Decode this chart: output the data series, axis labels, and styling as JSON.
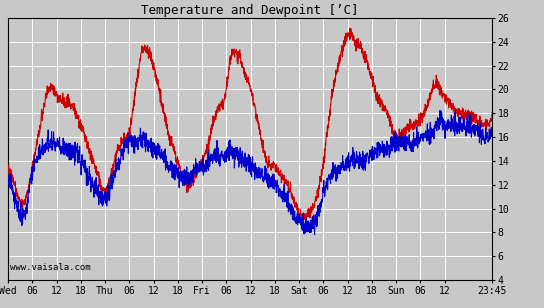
{
  "title": "Temperature and Dewpoint [’C]",
  "ylim": [
    4,
    26
  ],
  "yticks": [
    4,
    6,
    8,
    10,
    12,
    14,
    16,
    18,
    20,
    22,
    24,
    26
  ],
  "xtick_labels": [
    "Wed",
    "06",
    "12",
    "18",
    "Thu",
    "06",
    "12",
    "18",
    "Fri",
    "06",
    "12",
    "18",
    "Sat",
    "06",
    "12",
    "18",
    "Sun",
    "06",
    "12",
    "23:45"
  ],
  "xtick_positions": [
    0,
    6,
    12,
    18,
    24,
    30,
    36,
    42,
    48,
    54,
    60,
    66,
    72,
    78,
    84,
    90,
    96,
    102,
    108,
    119.75
  ],
  "total_hours": 119.75,
  "watermark": "www.vaisala.com",
  "bg_color": "#c8c8c8",
  "plot_bg_color": "#c8c8c8",
  "grid_color": "#ffffff",
  "line_red_color": "#cc0000",
  "line_blue_color": "#0000cc",
  "line_width": 0.8,
  "temp_waypoints": [
    [
      0,
      13.5
    ],
    [
      2,
      11.5
    ],
    [
      4,
      10.5
    ],
    [
      6,
      13.5
    ],
    [
      8,
      17
    ],
    [
      10,
      20
    ],
    [
      12,
      19.5
    ],
    [
      14,
      19
    ],
    [
      16,
      18.5
    ],
    [
      18,
      17
    ],
    [
      20,
      15
    ],
    [
      22,
      13
    ],
    [
      24,
      11.5
    ],
    [
      26,
      13.5
    ],
    [
      28,
      15.5
    ],
    [
      30,
      16.5
    ],
    [
      32,
      21
    ],
    [
      33,
      23
    ],
    [
      34,
      23.5
    ],
    [
      36,
      22
    ],
    [
      38,
      19
    ],
    [
      40,
      16
    ],
    [
      42,
      14
    ],
    [
      44,
      12
    ],
    [
      46,
      12.5
    ],
    [
      48,
      14
    ],
    [
      50,
      16
    ],
    [
      52,
      18.5
    ],
    [
      54,
      20
    ],
    [
      55,
      22.5
    ],
    [
      56,
      23
    ],
    [
      57,
      23
    ],
    [
      58,
      22
    ],
    [
      60,
      20
    ],
    [
      62,
      17
    ],
    [
      64,
      14
    ],
    [
      66,
      13.5
    ],
    [
      68,
      12.5
    ],
    [
      70,
      11.5
    ],
    [
      72,
      9.5
    ],
    [
      74,
      9.5
    ],
    [
      76,
      10.5
    ],
    [
      78,
      14
    ],
    [
      80,
      19
    ],
    [
      82,
      22.5
    ],
    [
      84,
      24.5
    ],
    [
      85,
      24.5
    ],
    [
      86,
      24
    ],
    [
      88,
      23
    ],
    [
      90,
      21
    ],
    [
      92,
      19
    ],
    [
      94,
      18
    ],
    [
      96,
      16
    ],
    [
      98,
      16.5
    ],
    [
      100,
      17
    ],
    [
      102,
      17.5
    ],
    [
      104,
      19
    ],
    [
      106,
      20.5
    ],
    [
      107,
      20
    ],
    [
      108,
      19.5
    ],
    [
      110,
      18.5
    ],
    [
      112,
      18
    ],
    [
      114,
      18
    ],
    [
      116,
      17.5
    ],
    [
      119.75,
      17.5
    ]
  ],
  "dew_waypoints": [
    [
      0,
      12.5
    ],
    [
      2,
      10.5
    ],
    [
      4,
      9.5
    ],
    [
      6,
      13
    ],
    [
      8,
      14.5
    ],
    [
      10,
      15.5
    ],
    [
      12,
      15.5
    ],
    [
      14,
      15
    ],
    [
      16,
      15
    ],
    [
      18,
      14
    ],
    [
      20,
      12.5
    ],
    [
      22,
      11.5
    ],
    [
      24,
      11
    ],
    [
      26,
      12.5
    ],
    [
      28,
      14.5
    ],
    [
      30,
      15.5
    ],
    [
      32,
      15.5
    ],
    [
      33,
      16
    ],
    [
      34,
      15.5
    ],
    [
      36,
      15
    ],
    [
      38,
      14.5
    ],
    [
      40,
      13.5
    ],
    [
      42,
      13
    ],
    [
      44,
      12.5
    ],
    [
      46,
      13
    ],
    [
      48,
      13.5
    ],
    [
      50,
      14
    ],
    [
      52,
      14.5
    ],
    [
      54,
      14.5
    ],
    [
      55,
      15
    ],
    [
      56,
      14.5
    ],
    [
      57,
      14.5
    ],
    [
      58,
      14
    ],
    [
      60,
      13.5
    ],
    [
      62,
      13
    ],
    [
      64,
      12.5
    ],
    [
      66,
      12
    ],
    [
      68,
      11
    ],
    [
      70,
      10
    ],
    [
      72,
      9
    ],
    [
      74,
      8.5
    ],
    [
      76,
      9
    ],
    [
      78,
      11
    ],
    [
      80,
      13
    ],
    [
      82,
      13.5
    ],
    [
      84,
      14
    ],
    [
      85,
      14
    ],
    [
      86,
      14
    ],
    [
      88,
      14
    ],
    [
      90,
      14.5
    ],
    [
      92,
      15
    ],
    [
      94,
      15
    ],
    [
      96,
      15.5
    ],
    [
      98,
      15.5
    ],
    [
      100,
      15.5
    ],
    [
      102,
      16
    ],
    [
      104,
      16
    ],
    [
      106,
      17
    ],
    [
      107,
      17.5
    ],
    [
      108,
      17
    ],
    [
      110,
      17
    ],
    [
      112,
      17
    ],
    [
      114,
      17
    ],
    [
      116,
      16.5
    ],
    [
      119.75,
      16.5
    ]
  ],
  "noise_temp_std": 0.25,
  "noise_dew_std": 0.4
}
